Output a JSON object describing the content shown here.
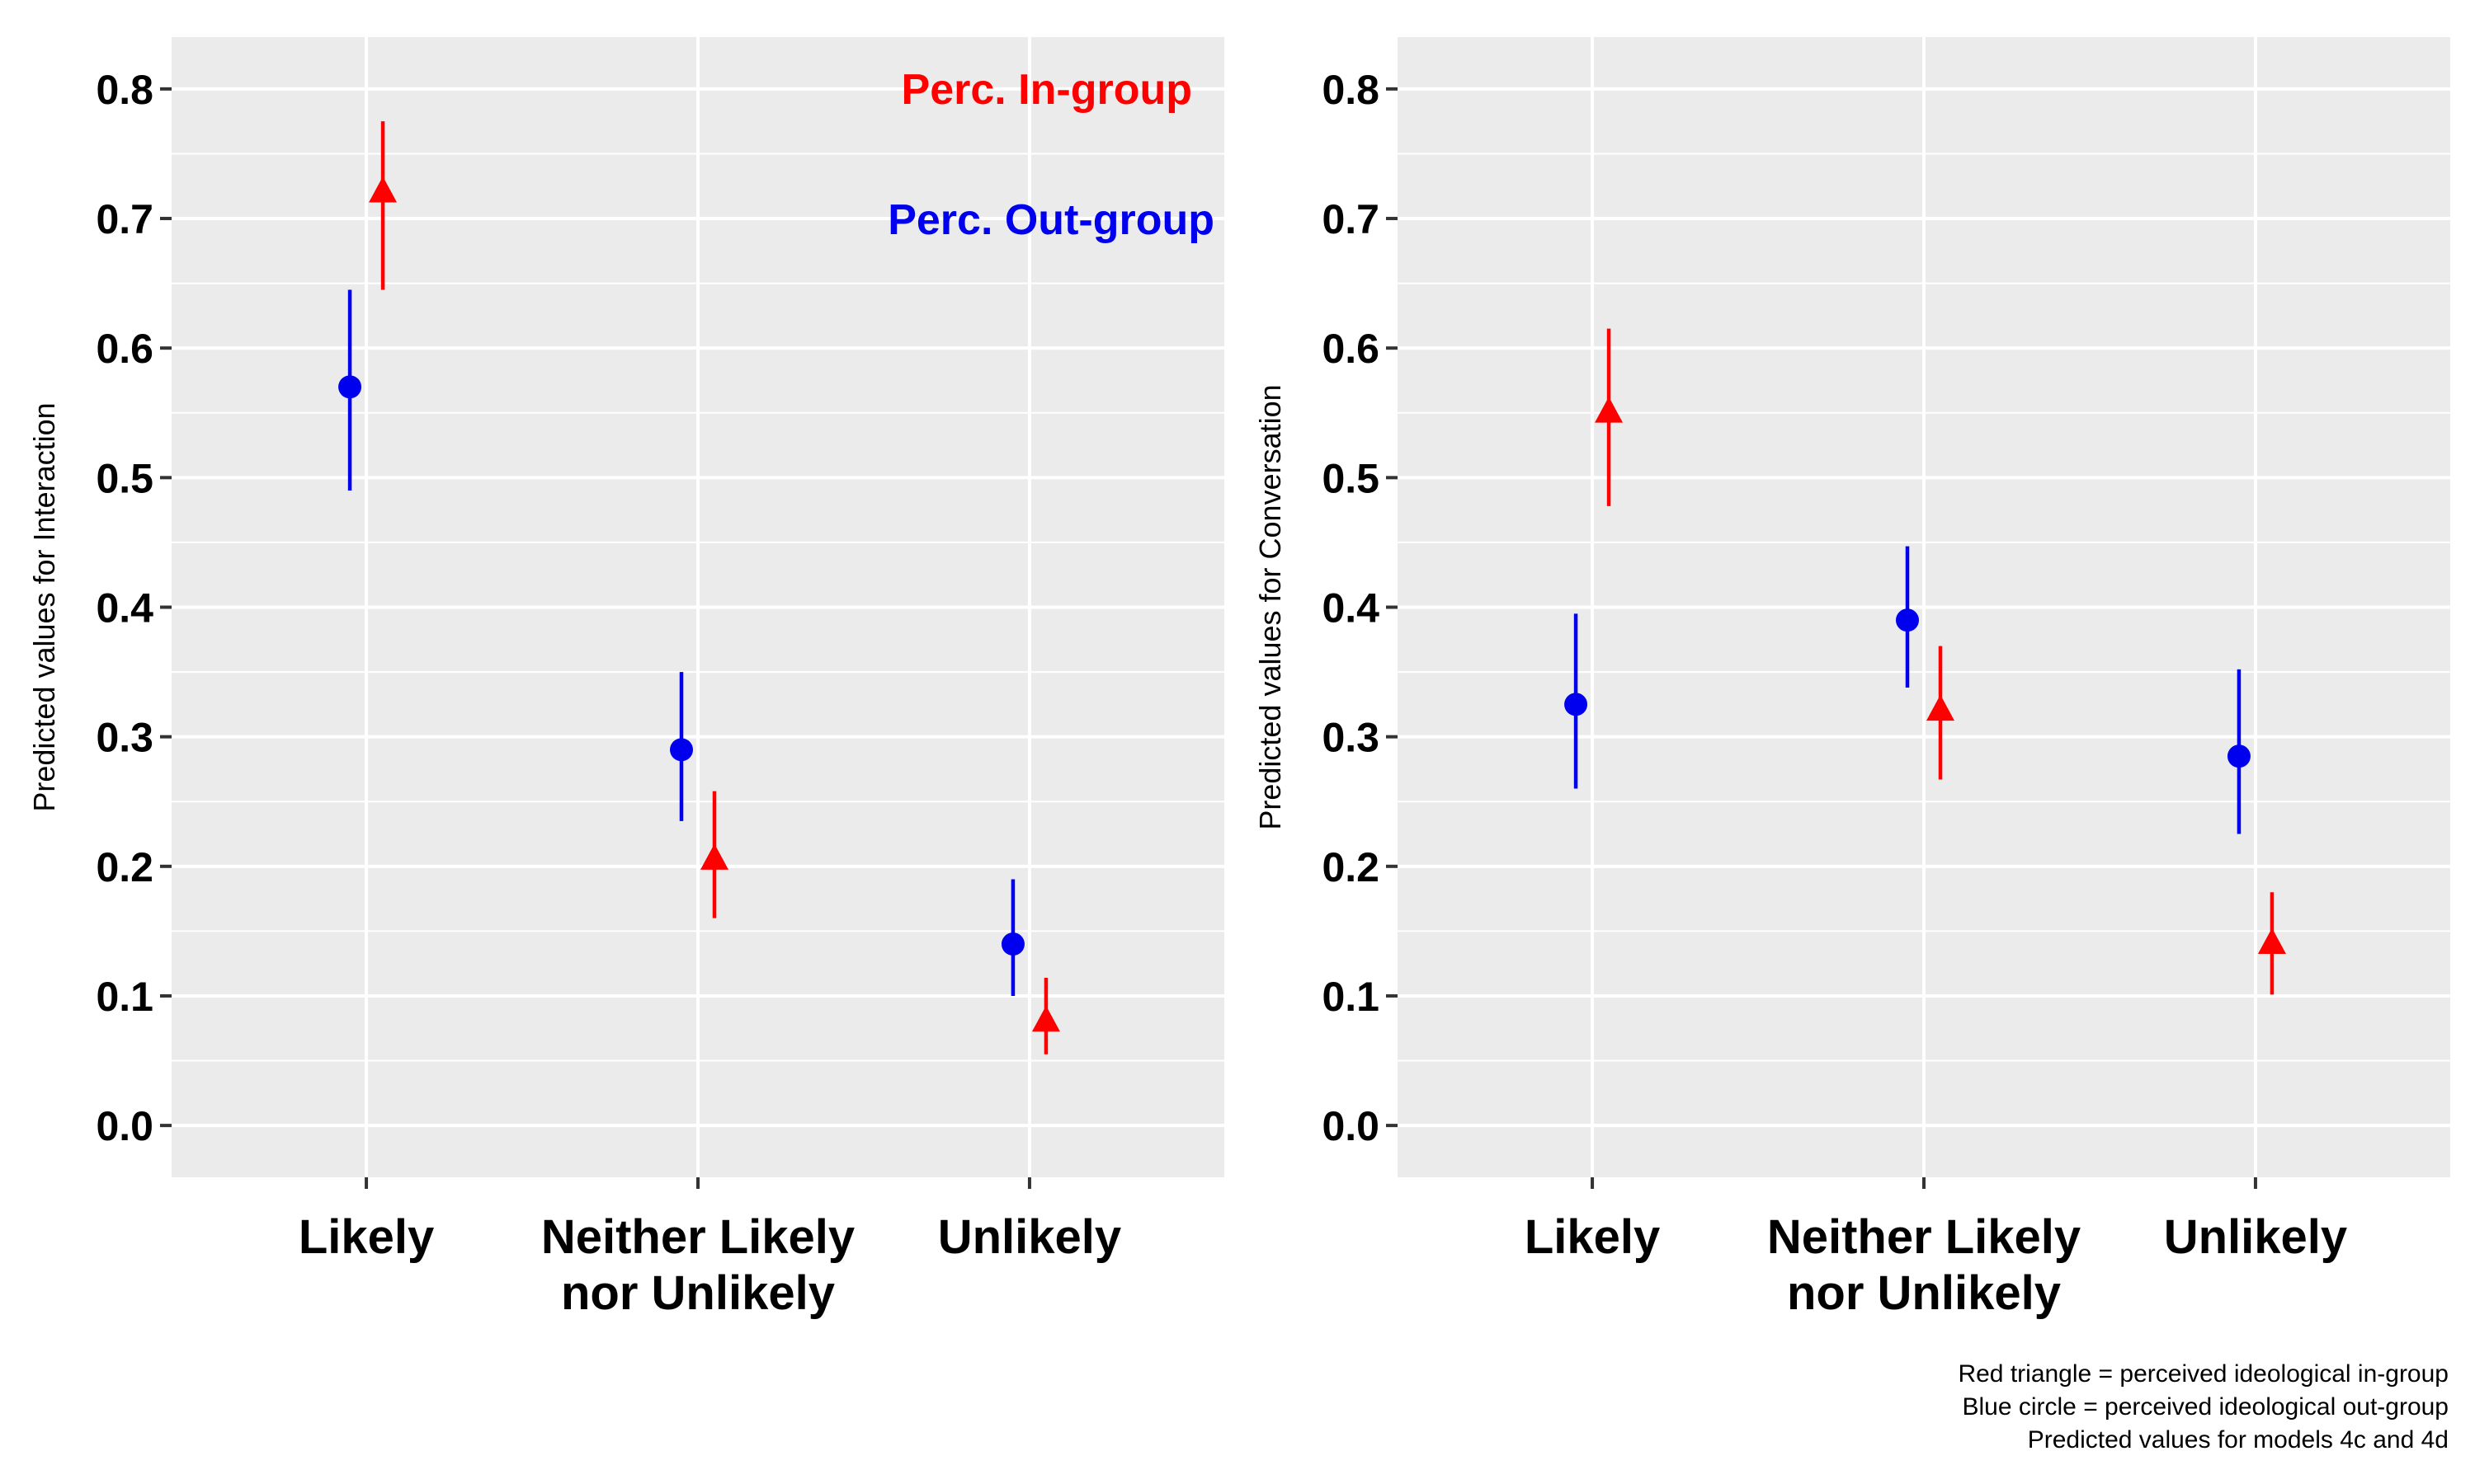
{
  "colors": {
    "in_group": "#ff0000",
    "out_group": "#0000ee",
    "panel_bg": "#ebebeb",
    "grid": "#ffffff"
  },
  "legend": {
    "in_group_label": "Perc. In-group",
    "out_group_label": "Perc. Out-group"
  },
  "caption": [
    "Red triangle = perceived ideological in-group",
    "Blue circle = perceived ideological out-group",
    "Predicted values for models 4c and 4d"
  ],
  "chart_data": [
    {
      "type": "scatter",
      "ylabel": "Predicted values for Interaction",
      "categories": [
        [
          "Likely"
        ],
        [
          "Neither Likely",
          "nor Unlikely"
        ],
        [
          "Unlikely"
        ]
      ],
      "ylim": [
        -0.04,
        0.84
      ],
      "yticks": [
        "0.0",
        "0.1",
        "0.2",
        "0.3",
        "0.4",
        "0.5",
        "0.6",
        "0.7",
        "0.8"
      ],
      "grid": true,
      "legend_position": "top-right",
      "series": [
        {
          "name": "Perc. Out-group",
          "marker": "circle",
          "color": "#0000ee",
          "values": [
            0.57,
            0.29,
            0.14
          ],
          "lower": [
            0.49,
            0.235,
            0.1
          ],
          "upper": [
            0.645,
            0.35,
            0.19
          ]
        },
        {
          "name": "Perc. In-group",
          "marker": "triangle",
          "color": "#ff0000",
          "values": [
            0.72,
            0.205,
            0.08
          ],
          "lower": [
            0.645,
            0.16,
            0.055
          ],
          "upper": [
            0.775,
            0.258,
            0.114
          ]
        }
      ]
    },
    {
      "type": "scatter",
      "ylabel": "Predicted values for Conversation",
      "categories": [
        [
          "Likely"
        ],
        [
          "Neither Likely",
          "nor Unlikely"
        ],
        [
          "Unlikely"
        ]
      ],
      "ylim": [
        -0.04,
        0.84
      ],
      "yticks": [
        "0.0",
        "0.1",
        "0.2",
        "0.3",
        "0.4",
        "0.5",
        "0.6",
        "0.7",
        "0.8"
      ],
      "grid": true,
      "series": [
        {
          "name": "Perc. Out-group",
          "marker": "circle",
          "color": "#0000ee",
          "values": [
            0.325,
            0.39,
            0.285
          ],
          "lower": [
            0.26,
            0.338,
            0.225
          ],
          "upper": [
            0.395,
            0.447,
            0.352
          ]
        },
        {
          "name": "Perc. In-group",
          "marker": "triangle",
          "color": "#ff0000",
          "values": [
            0.55,
            0.32,
            0.14
          ],
          "lower": [
            0.478,
            0.267,
            0.101
          ],
          "upper": [
            0.615,
            0.37,
            0.18
          ]
        }
      ]
    }
  ]
}
